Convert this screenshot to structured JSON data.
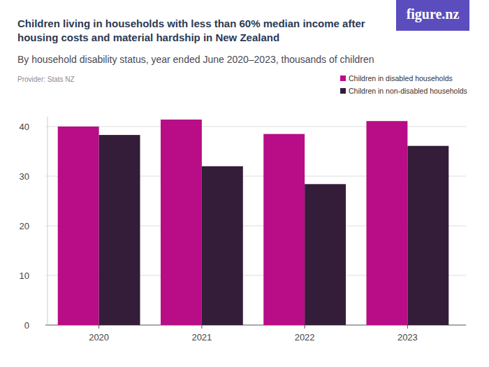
{
  "chart_data": {
    "type": "bar",
    "title": "Children living in households with less than 60% median income after housing costs and material hardship in New Zealand",
    "subtitle": "By household disability status, year ended June 2020–2023, thousands of children",
    "source": "Provider: Stats NZ",
    "logo": "figure.nz",
    "categories": [
      "2020",
      "2021",
      "2022",
      "2023"
    ],
    "series": [
      {
        "name": "Children in disabled households",
        "color": "#b80d86",
        "values": [
          40.0,
          41.4,
          38.5,
          41.1
        ]
      },
      {
        "name": "Children in non-disabled households",
        "color": "#331d38",
        "values": [
          38.3,
          32.0,
          28.4,
          36.1
        ]
      }
    ],
    "ylim": [
      0,
      42
    ],
    "yticks": [
      0,
      10,
      20,
      30,
      40
    ],
    "grid": true,
    "legend": "top-right"
  }
}
